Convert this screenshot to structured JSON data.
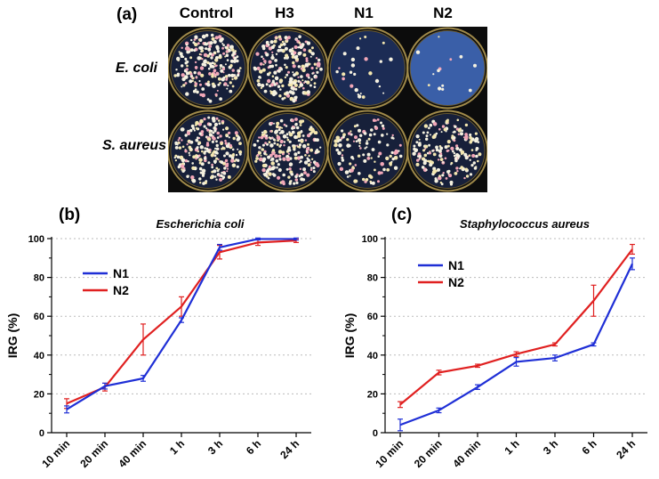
{
  "panel_a": {
    "label": "(a)",
    "columns": [
      "Control",
      "H3",
      "N1",
      "N2"
    ],
    "rows": [
      "E. coli",
      "S. aureus"
    ],
    "colony_density": [
      [
        0.9,
        0.85,
        0.1,
        0.05
      ],
      [
        0.95,
        0.95,
        0.45,
        0.7
      ]
    ]
  },
  "panel_b_label": "(b)",
  "panel_c_label": "(c)",
  "colors": {
    "N1": "#1f2fd6",
    "N2": "#e02020"
  },
  "chart_data": [
    {
      "type": "line",
      "title": "Escherichia coli",
      "xlabel": "",
      "ylabel": "IRG (%)",
      "categories": [
        "10 min",
        "20 min",
        "40 min",
        "1 h",
        "3 h",
        "6 h",
        "24 h"
      ],
      "ylim": [
        0,
        100
      ],
      "yticks": [
        0,
        20,
        40,
        60,
        80,
        100
      ],
      "grid": "horizontal-dotted",
      "legend_position": "upper-left",
      "series": [
        {
          "name": "N1",
          "color": "#1f2fd6",
          "values": [
            12,
            24,
            28,
            58,
            95.5,
            99.8,
            99.8
          ],
          "errors": [
            1.8,
            1.5,
            1.5,
            1.2,
            1.5,
            0.5,
            0.5
          ]
        },
        {
          "name": "N2",
          "color": "#e02020",
          "values": [
            15,
            23.5,
            48,
            65,
            93,
            98,
            99
          ],
          "errors": [
            2.5,
            2,
            8,
            5,
            3.5,
            1.5,
            1
          ]
        }
      ]
    },
    {
      "type": "line",
      "title": "Staphylococcus aureus",
      "xlabel": "",
      "ylabel": "IRG (%)",
      "categories": [
        "10 min",
        "20 min",
        "40 min",
        "1 h",
        "3 h",
        "6 h",
        "24 h"
      ],
      "ylim": [
        0,
        100
      ],
      "yticks": [
        0,
        20,
        40,
        60,
        80,
        100
      ],
      "grid": "horizontal-dotted",
      "legend_position": "upper-left",
      "series": [
        {
          "name": "N1",
          "color": "#1f2fd6",
          "values": [
            4,
            11.5,
            23.5,
            36.5,
            38.5,
            45.5,
            87
          ],
          "errors": [
            3,
            1.2,
            1.2,
            2.2,
            1.5,
            0.8,
            3
          ]
        },
        {
          "name": "N2",
          "color": "#e02020",
          "values": [
            14.5,
            31,
            34.5,
            40.5,
            45.5,
            68,
            94.5
          ],
          "errors": [
            1.5,
            1.2,
            0.8,
            1.2,
            0.8,
            8,
            2.5
          ]
        }
      ]
    }
  ]
}
